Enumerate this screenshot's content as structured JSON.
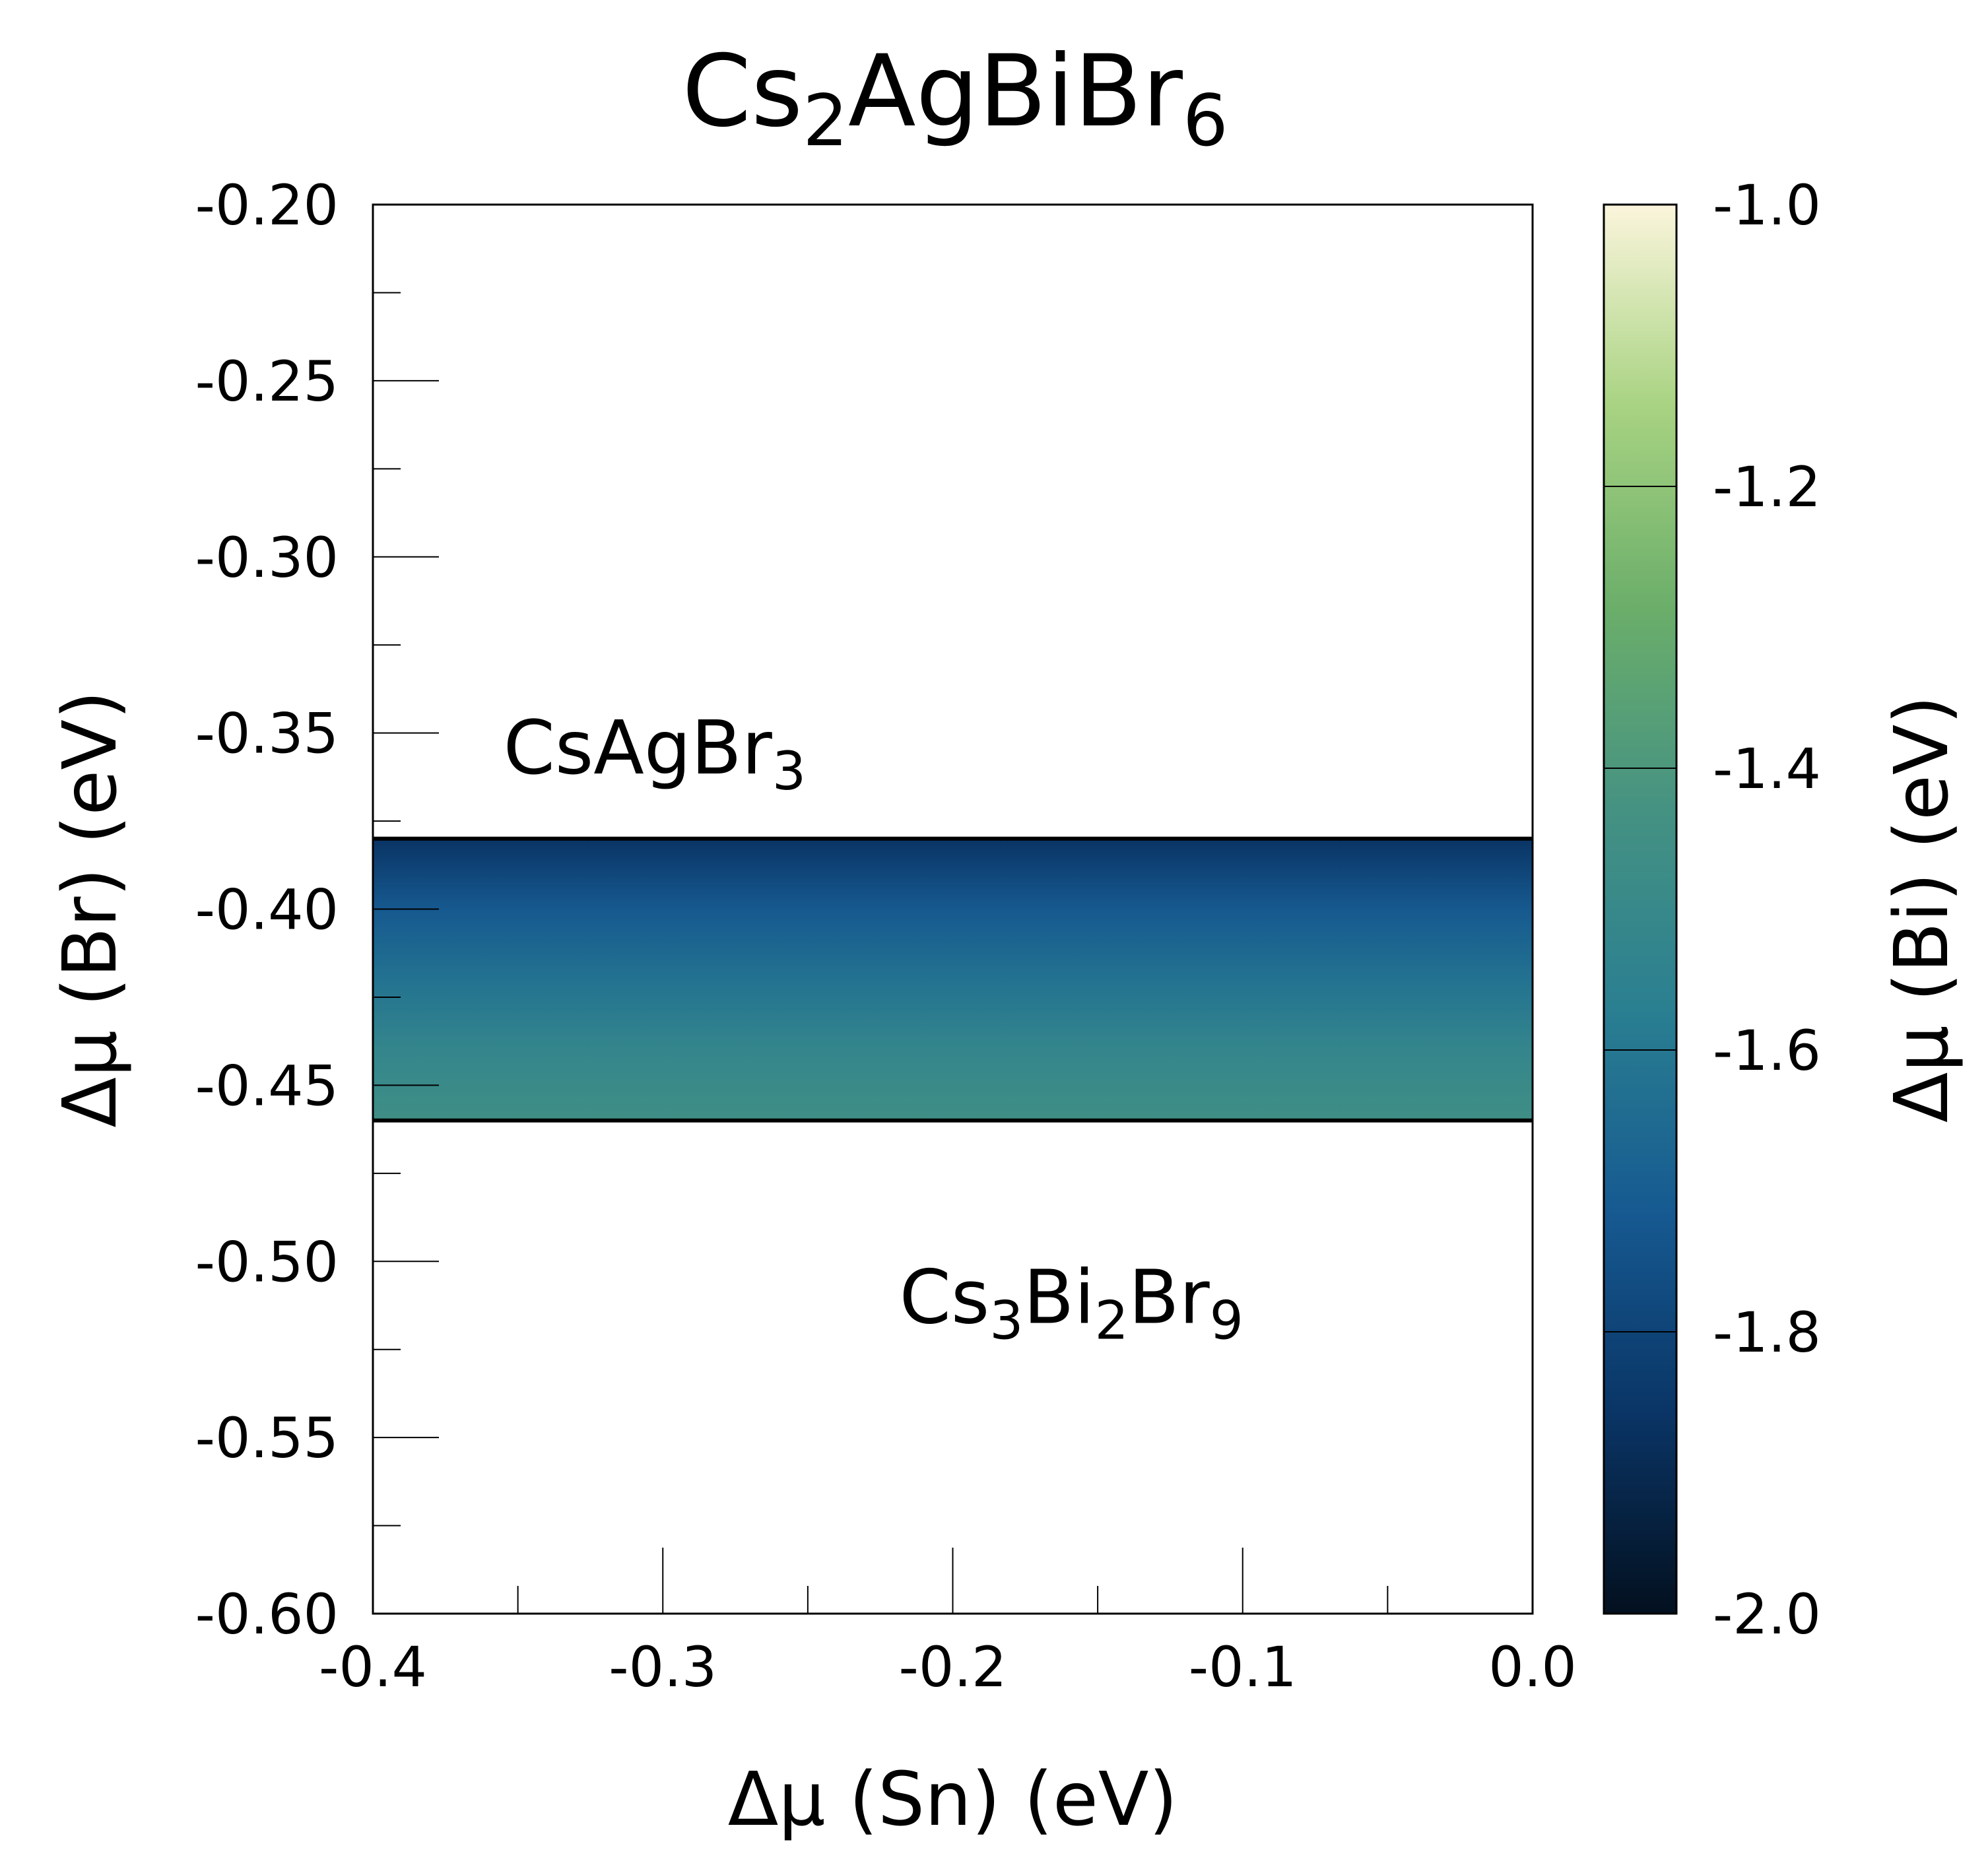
{
  "chart_data": {
    "type": "heatmap",
    "title": {
      "base1": "Cs",
      "sub1": "2",
      "base2": "AgBiBr",
      "sub2": "6"
    },
    "xlabel": "Δμ (Sn) (eV)",
    "ylabel": "Δμ (Br) (eV)",
    "colorbar_label": "Δμ (Bi) (eV)",
    "xlim": [
      -0.4,
      0.0
    ],
    "ylim": [
      -0.6,
      -0.2
    ],
    "clim": [
      -2.0,
      -1.0
    ],
    "x_ticks": [
      "-0.4",
      "-0.3",
      "-0.2",
      "-0.1",
      "0.0"
    ],
    "x_tick_values": [
      -0.4,
      -0.3,
      -0.2,
      -0.1,
      0.0
    ],
    "x_minor_ticks": [
      -0.35,
      -0.25,
      -0.15,
      -0.05
    ],
    "y_ticks": [
      "-0.20",
      "-0.25",
      "-0.30",
      "-0.35",
      "-0.40",
      "-0.45",
      "-0.50",
      "-0.55",
      "-0.60"
    ],
    "y_tick_values": [
      -0.2,
      -0.25,
      -0.3,
      -0.35,
      -0.4,
      -0.45,
      -0.5,
      -0.55,
      -0.6
    ],
    "y_minor_ticks": [
      -0.225,
      -0.275,
      -0.325,
      -0.375,
      -0.425,
      -0.475,
      -0.525,
      -0.575
    ],
    "colorbar_ticks": [
      "-1.0",
      "-1.2",
      "-1.4",
      "-1.6",
      "-1.8",
      "-2.0"
    ],
    "colorbar_tick_values": [
      -1.0,
      -1.2,
      -1.4,
      -1.6,
      -1.8,
      -2.0
    ],
    "colormap_stops": [
      "#03101f",
      "#0a3566",
      "#165a91",
      "#2a7f91",
      "#459282",
      "#6bae6a",
      "#a8d382",
      "#fbf5dc"
    ],
    "stable_region": {
      "x_range": [
        -0.4,
        0.0
      ],
      "y_range": [
        -0.46,
        -0.38
      ],
      "dmu_bi_at_y": [
        {
          "y": -0.38,
          "value": -1.86
        },
        {
          "y": -0.4,
          "value": -1.72
        },
        {
          "y": -0.42,
          "value": -1.62
        },
        {
          "y": -0.44,
          "value": -1.52
        },
        {
          "y": -0.46,
          "value": -1.46
        }
      ]
    },
    "annotations": [
      {
        "base": "CsAgBr",
        "sub": "3",
        "x": -0.355,
        "y": -0.354
      },
      {
        "base": "Cs",
        "sub": "3",
        "base2": "Bi",
        "sub2": "2",
        "base3": "Br",
        "sub3": "9",
        "x": -0.17,
        "y": -0.51
      }
    ]
  }
}
